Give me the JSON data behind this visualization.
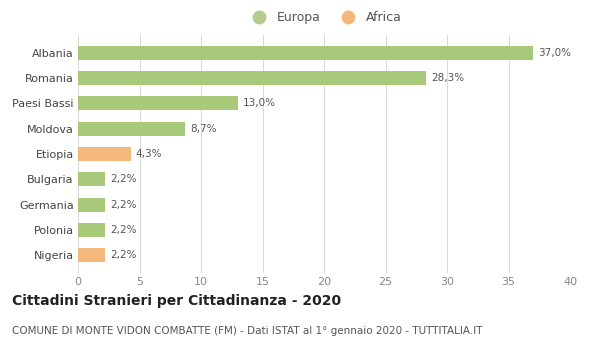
{
  "categories": [
    "Nigeria",
    "Polonia",
    "Germania",
    "Bulgaria",
    "Etiopia",
    "Moldova",
    "Paesi Bassi",
    "Romania",
    "Albania"
  ],
  "values": [
    2.2,
    2.2,
    2.2,
    2.2,
    4.3,
    8.7,
    13.0,
    28.3,
    37.0
  ],
  "labels": [
    "2,2%",
    "2,2%",
    "2,2%",
    "2,2%",
    "4,3%",
    "8,7%",
    "13,0%",
    "28,3%",
    "37,0%"
  ],
  "colors": [
    "#f4b97a",
    "#a8c97a",
    "#a8c97a",
    "#a8c97a",
    "#f4b97a",
    "#a8c97a",
    "#a8c97a",
    "#a8c97a",
    "#a8c97a"
  ],
  "europa_color": "#b5cc8e",
  "africa_color": "#f4b97a",
  "title": "Cittadini Stranieri per Cittadinanza - 2020",
  "subtitle": "COMUNE DI MONTE VIDON COMBATTE (FM) - Dati ISTAT al 1° gennaio 2020 - TUTTITALIA.IT",
  "xlim": [
    0,
    40
  ],
  "xticks": [
    0,
    5,
    10,
    15,
    20,
    25,
    30,
    35,
    40
  ],
  "bg_color": "#ffffff",
  "grid_color": "#d8d8d8",
  "bar_height": 0.55,
  "label_fontsize": 7.5,
  "title_fontsize": 10,
  "subtitle_fontsize": 7.5,
  "tick_fontsize": 8,
  "legend_fontsize": 9
}
